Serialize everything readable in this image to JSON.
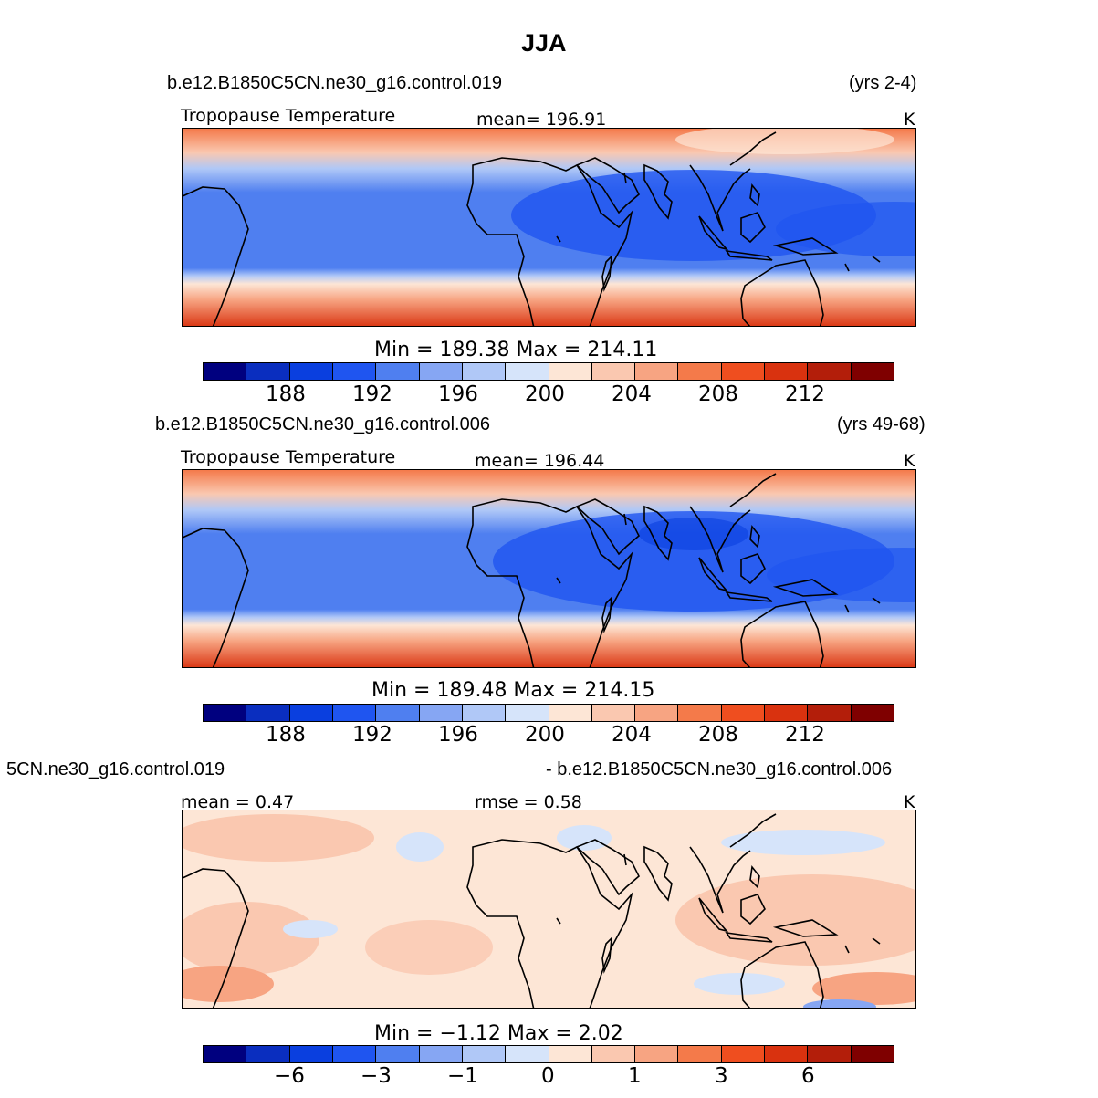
{
  "title": "JJA",
  "panel1": {
    "case": "b.e12.B1850C5CN.ne30_g16.control.019",
    "years": "(yrs 2-4)",
    "varname": "Tropopause Temperature",
    "stat": "mean=  196.91",
    "units": "K",
    "minmax": "Min  =  189.38  Max  =  214.11",
    "ticks": [
      "188",
      "192",
      "196",
      "200",
      "204",
      "208",
      "212"
    ]
  },
  "panel2": {
    "case": "b.e12.B1850C5CN.ne30_g16.control.006",
    "years": "(yrs 49-68)",
    "varname": "Tropopause Temperature",
    "stat": "mean=  196.44",
    "units": "K",
    "minmax": "Min  =  189.48  Max  =  214.15",
    "ticks": [
      "188",
      "192",
      "196",
      "200",
      "204",
      "208",
      "212"
    ]
  },
  "panel3": {
    "case_left": "5CN.ne30_g16.control.019",
    "case_right": "- b.e12.B1850C5CN.ne30_g16.control.006",
    "stat_mean": "mean =    0.47",
    "stat_rmse": "rmse =    0.58",
    "units": "K",
    "minmax": "Min  =   −1.12  Max  =     2.02",
    "ticks": [
      "−6",
      "−3",
      "−1",
      "0",
      "1",
      "3",
      "6"
    ]
  },
  "colors": [
    "#00007f",
    "#0a2ebf",
    "#0a3fdf",
    "#1f55f0",
    "#4f7ff0",
    "#86a6f3",
    "#b0c8f7",
    "#d6e4fa",
    "#fde6d6",
    "#fac8b0",
    "#f7a482",
    "#f47a4a",
    "#ef4e1f",
    "#d9320f",
    "#b31e0a",
    "#7f0000"
  ]
}
